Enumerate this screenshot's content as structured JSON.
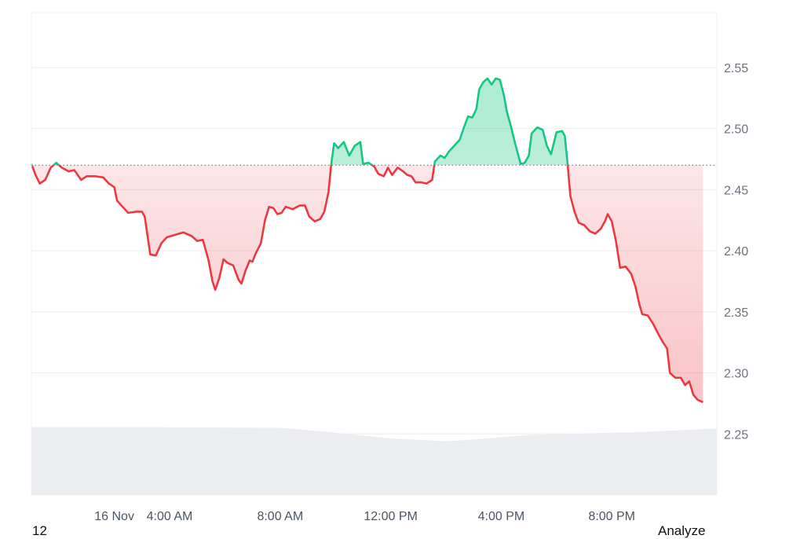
{
  "chart_data": {
    "type": "line",
    "baseline": 2.47,
    "ylim": [
      2.2,
      2.595
    ],
    "y_ticks": [
      "2.25",
      "2.30",
      "2.35",
      "2.40",
      "2.45",
      "2.50",
      "2.55"
    ],
    "x_ticks": [
      {
        "label": "16 Nov",
        "hour": 2
      },
      {
        "label": "4:00 AM",
        "hour": 4
      },
      {
        "label": "8:00 AM",
        "hour": 8
      },
      {
        "label": "12:00 PM",
        "hour": 12
      },
      {
        "label": "4:00 PM",
        "hour": 16
      },
      {
        "label": "8:00 PM",
        "hour": 20
      }
    ],
    "x_range_hours": [
      -1,
      23.8
    ],
    "grid": true,
    "colors": {
      "up": "#16c784",
      "down": "#ea3943",
      "grid": "#eeeeee",
      "volume": "#e5e7eb"
    },
    "series": [
      {
        "values": [
          [
            -1.0,
            2.471
          ],
          [
            -0.85,
            2.462
          ],
          [
            -0.7,
            2.455
          ],
          [
            -0.5,
            2.458
          ],
          [
            -0.3,
            2.468
          ],
          [
            -0.1,
            2.472
          ],
          [
            0.1,
            2.468
          ],
          [
            0.35,
            2.465
          ],
          [
            0.55,
            2.466
          ],
          [
            0.8,
            2.458
          ],
          [
            1.0,
            2.461
          ],
          [
            1.3,
            2.461
          ],
          [
            1.6,
            2.46
          ],
          [
            1.8,
            2.455
          ],
          [
            2.0,
            2.452
          ],
          [
            2.1,
            2.441
          ],
          [
            2.3,
            2.436
          ],
          [
            2.5,
            2.431
          ],
          [
            2.8,
            2.432
          ],
          [
            3.0,
            2.432
          ],
          [
            3.1,
            2.428
          ],
          [
            3.3,
            2.397
          ],
          [
            3.5,
            2.396
          ],
          [
            3.7,
            2.406
          ],
          [
            3.9,
            2.411
          ],
          [
            4.2,
            2.413
          ],
          [
            4.5,
            2.415
          ],
          [
            4.8,
            2.412
          ],
          [
            5.0,
            2.408
          ],
          [
            5.2,
            2.409
          ],
          [
            5.4,
            2.393
          ],
          [
            5.55,
            2.375
          ],
          [
            5.65,
            2.368
          ],
          [
            5.8,
            2.378
          ],
          [
            5.95,
            2.393
          ],
          [
            6.1,
            2.39
          ],
          [
            6.3,
            2.388
          ],
          [
            6.5,
            2.376
          ],
          [
            6.6,
            2.373
          ],
          [
            6.75,
            2.384
          ],
          [
            6.9,
            2.392
          ],
          [
            7.0,
            2.391
          ],
          [
            7.1,
            2.397
          ],
          [
            7.3,
            2.406
          ],
          [
            7.45,
            2.425
          ],
          [
            7.6,
            2.436
          ],
          [
            7.75,
            2.435
          ],
          [
            7.9,
            2.43
          ],
          [
            8.05,
            2.431
          ],
          [
            8.2,
            2.436
          ],
          [
            8.45,
            2.434
          ],
          [
            8.7,
            2.437
          ],
          [
            8.9,
            2.437
          ],
          [
            9.05,
            2.428
          ],
          [
            9.25,
            2.424
          ],
          [
            9.45,
            2.426
          ],
          [
            9.6,
            2.432
          ],
          [
            9.75,
            2.448
          ],
          [
            9.85,
            2.471
          ],
          [
            9.95,
            2.488
          ],
          [
            10.1,
            2.484
          ],
          [
            10.3,
            2.489
          ],
          [
            10.5,
            2.478
          ],
          [
            10.7,
            2.486
          ],
          [
            10.9,
            2.489
          ],
          [
            11.0,
            2.471
          ],
          [
            11.2,
            2.472
          ],
          [
            11.4,
            2.469
          ],
          [
            11.55,
            2.463
          ],
          [
            11.75,
            2.461
          ],
          [
            11.9,
            2.468
          ],
          [
            12.05,
            2.462
          ],
          [
            12.25,
            2.468
          ],
          [
            12.45,
            2.465
          ],
          [
            12.6,
            2.462
          ],
          [
            12.75,
            2.461
          ],
          [
            12.9,
            2.456
          ],
          [
            13.1,
            2.456
          ],
          [
            13.3,
            2.455
          ],
          [
            13.5,
            2.458
          ],
          [
            13.6,
            2.473
          ],
          [
            13.8,
            2.478
          ],
          [
            13.95,
            2.476
          ],
          [
            14.1,
            2.481
          ],
          [
            14.3,
            2.486
          ],
          [
            14.5,
            2.491
          ],
          [
            14.65,
            2.501
          ],
          [
            14.8,
            2.51
          ],
          [
            14.95,
            2.509
          ],
          [
            15.1,
            2.516
          ],
          [
            15.2,
            2.532
          ],
          [
            15.35,
            2.538
          ],
          [
            15.5,
            2.541
          ],
          [
            15.65,
            2.536
          ],
          [
            15.8,
            2.541
          ],
          [
            15.95,
            2.54
          ],
          [
            16.1,
            2.527
          ],
          [
            16.2,
            2.514
          ],
          [
            16.35,
            2.502
          ],
          [
            16.5,
            2.488
          ],
          [
            16.7,
            2.471
          ],
          [
            16.85,
            2.472
          ],
          [
            17.0,
            2.478
          ],
          [
            17.1,
            2.496
          ],
          [
            17.3,
            2.501
          ],
          [
            17.5,
            2.499
          ],
          [
            17.65,
            2.486
          ],
          [
            17.8,
            2.479
          ],
          [
            18.0,
            2.497
          ],
          [
            18.2,
            2.498
          ],
          [
            18.3,
            2.494
          ],
          [
            18.4,
            2.471
          ],
          [
            18.5,
            2.445
          ],
          [
            18.65,
            2.432
          ],
          [
            18.8,
            2.423
          ],
          [
            19.0,
            2.421
          ],
          [
            19.2,
            2.416
          ],
          [
            19.4,
            2.414
          ],
          [
            19.6,
            2.418
          ],
          [
            19.75,
            2.424
          ],
          [
            19.85,
            2.43
          ],
          [
            20.0,
            2.424
          ],
          [
            20.15,
            2.408
          ],
          [
            20.3,
            2.386
          ],
          [
            20.5,
            2.387
          ],
          [
            20.7,
            2.381
          ],
          [
            20.85,
            2.371
          ],
          [
            21.0,
            2.356
          ],
          [
            21.1,
            2.348
          ],
          [
            21.3,
            2.347
          ],
          [
            21.5,
            2.34
          ],
          [
            21.7,
            2.331
          ],
          [
            21.85,
            2.325
          ],
          [
            22.0,
            2.32
          ],
          [
            22.1,
            2.3
          ],
          [
            22.3,
            2.296
          ],
          [
            22.5,
            2.296
          ],
          [
            22.65,
            2.29
          ],
          [
            22.8,
            2.293
          ],
          [
            22.95,
            2.282
          ],
          [
            23.1,
            2.278
          ],
          [
            23.3,
            2.276
          ]
        ]
      }
    ],
    "volume": [
      {
        "hour": -1,
        "value": 0.96
      },
      {
        "hour": 3,
        "value": 0.96
      },
      {
        "hour": 8,
        "value": 0.95
      },
      {
        "hour": 9.5,
        "value": 0.9
      },
      {
        "hour": 12,
        "value": 0.8
      },
      {
        "hour": 14,
        "value": 0.76
      },
      {
        "hour": 15.5,
        "value": 0.8
      },
      {
        "hour": 17,
        "value": 0.85
      },
      {
        "hour": 21,
        "value": 0.89
      },
      {
        "hour": 23.8,
        "value": 0.94
      }
    ]
  },
  "footer": {
    "left_text": "12",
    "right_text": "Analyze"
  }
}
